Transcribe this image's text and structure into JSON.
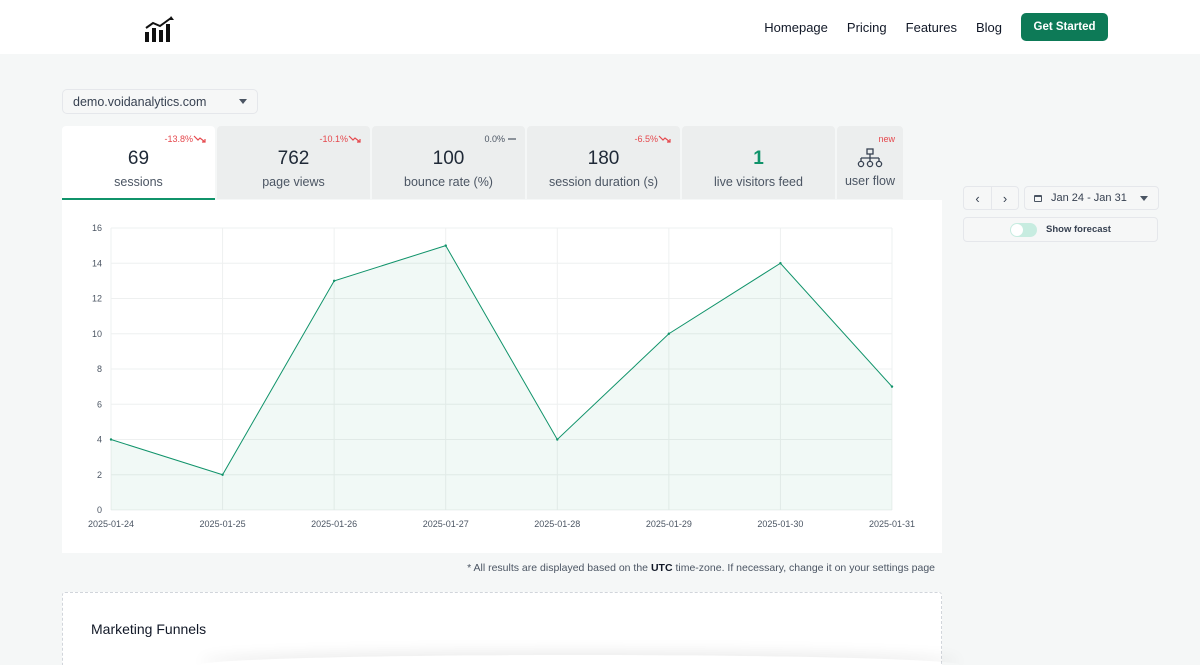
{
  "nav": {
    "links": [
      "Homepage",
      "Pricing",
      "Features",
      "Blog"
    ],
    "cta": "Get Started"
  },
  "domain_select": {
    "value": "demo.voidanalytics.com"
  },
  "tabs": [
    {
      "value": "69",
      "label": "sessions",
      "delta": "-13.8%"
    },
    {
      "value": "762",
      "label": "page views",
      "delta": "-10.1%"
    },
    {
      "value": "100",
      "label": "bounce rate (%)",
      "delta": "0.0%"
    },
    {
      "value": "180",
      "label": "session duration (s)",
      "delta": "-6.5%"
    },
    {
      "value": "1",
      "label": "live visitors feed"
    },
    {
      "label": "user flow",
      "badge": "new"
    }
  ],
  "controls": {
    "prev": "‹",
    "next": "›",
    "date_range": "Jan 24 - Jan 31",
    "forecast_label": "Show forecast",
    "forecast_on": false
  },
  "timezone_note": {
    "prefix": "* All results are displayed based on the ",
    "tz": "UTC",
    "suffix": " time-zone. If necessary, change it on your settings page"
  },
  "funnels": {
    "title": "Marketing Funnels"
  },
  "colors": {
    "accent": "#10936a",
    "negative": "#e5484d"
  },
  "chart_data": {
    "type": "area",
    "x": [
      "2025-01-24",
      "2025-01-25",
      "2025-01-26",
      "2025-01-27",
      "2025-01-28",
      "2025-01-29",
      "2025-01-30",
      "2025-01-31"
    ],
    "series": [
      {
        "values": [
          4,
          2,
          13,
          15,
          4,
          10,
          14,
          7
        ]
      }
    ],
    "y_ticks": [
      0,
      2,
      4,
      6,
      8,
      10,
      12,
      14,
      16
    ],
    "ylim": [
      0,
      16
    ],
    "grid": true,
    "legend": "none"
  }
}
